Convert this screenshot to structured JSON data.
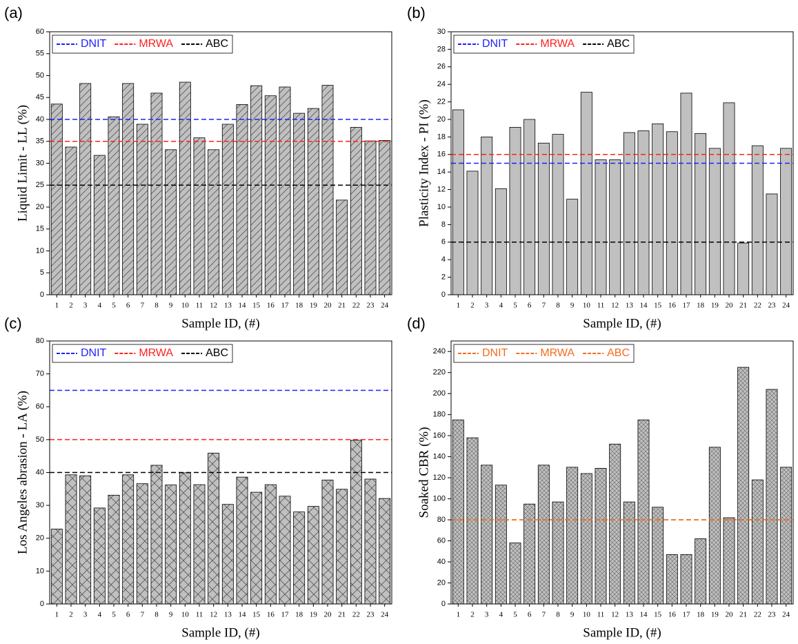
{
  "chart_data": [
    {
      "type": "bar",
      "panel_label": "(a)",
      "y_label": "Liquid Limit - LL (%)",
      "x_label": "Sample ID, (#)",
      "categories": [
        "1",
        "2",
        "3",
        "4",
        "5",
        "6",
        "7",
        "8",
        "9",
        "10",
        "11",
        "12",
        "13",
        "14",
        "15",
        "16",
        "17",
        "18",
        "19",
        "20",
        "21",
        "22",
        "23",
        "24"
      ],
      "values": [
        43.5,
        33.7,
        48.2,
        31.8,
        40.6,
        48.2,
        38.9,
        46.0,
        33.1,
        48.5,
        35.8,
        33.1,
        38.9,
        43.4,
        47.7,
        45.4,
        47.4,
        41.4,
        42.5,
        47.8,
        21.6,
        38.2,
        35.1,
        35.2
      ],
      "color": "#c0c0c0",
      "pattern": "diagonal",
      "ylim": [
        0,
        60
      ],
      "yticks": [
        0,
        5,
        10,
        15,
        20,
        25,
        30,
        35,
        40,
        45,
        50,
        55,
        60
      ],
      "reference_lines": [
        {
          "name": "DNIT",
          "color": "#1f1fff",
          "value": 40
        },
        {
          "name": "MRWA",
          "color": "#ff1f1f",
          "value": 35
        },
        {
          "name": "ABC",
          "color": "#000000",
          "value": 25
        }
      ]
    },
    {
      "type": "bar",
      "panel_label": "(b)",
      "y_label": "Plasticity Index - PI (%)",
      "x_label": "Sample ID, (#)",
      "categories": [
        "1",
        "2",
        "3",
        "4",
        "5",
        "6",
        "7",
        "8",
        "9",
        "10",
        "11",
        "12",
        "13",
        "14",
        "15",
        "16",
        "17",
        "18",
        "19",
        "20",
        "21",
        "22",
        "23",
        "24"
      ],
      "values": [
        21.1,
        14.1,
        18.0,
        12.1,
        19.1,
        20.0,
        17.3,
        18.3,
        10.9,
        23.1,
        15.4,
        15.4,
        18.5,
        18.7,
        19.5,
        18.6,
        23.0,
        18.4,
        16.7,
        21.9,
        5.9,
        17.0,
        11.5,
        16.7
      ],
      "color": "#c0c0c0",
      "pattern": "none",
      "ylim": [
        0,
        30
      ],
      "yticks": [
        0,
        2,
        4,
        6,
        8,
        10,
        12,
        14,
        16,
        18,
        20,
        22,
        24,
        26,
        28,
        30
      ],
      "reference_lines": [
        {
          "name": "DNIT",
          "color": "#1f1fff",
          "value": 15
        },
        {
          "name": "MRWA",
          "color": "#ff1f1f",
          "value": 16
        },
        {
          "name": "ABC",
          "color": "#000000",
          "value": 6
        }
      ]
    },
    {
      "type": "bar",
      "panel_label": "(c)",
      "y_label": "Los Angeles abrasion - LA (%)",
      "x_label": "Sample ID, (#)",
      "categories": [
        "1",
        "2",
        "3",
        "4",
        "5",
        "6",
        "7",
        "8",
        "9",
        "10",
        "11",
        "12",
        "13",
        "14",
        "15",
        "16",
        "17",
        "18",
        "19",
        "20",
        "21",
        "22",
        "23",
        "24"
      ],
      "values": [
        22.8,
        39.3,
        39.0,
        29.2,
        33.1,
        39.3,
        36.6,
        42.2,
        36.2,
        39.9,
        36.3,
        45.9,
        30.3,
        38.6,
        34.0,
        36.3,
        32.8,
        28.0,
        29.7,
        37.7,
        34.9,
        49.8,
        38.0,
        32.1
      ],
      "color": "#c0c0c0",
      "pattern": "cross",
      "ylim": [
        0,
        80
      ],
      "yticks": [
        0,
        10,
        20,
        30,
        40,
        50,
        60,
        70,
        80
      ],
      "reference_lines": [
        {
          "name": "DNIT",
          "color": "#1f1fff",
          "value": 65
        },
        {
          "name": "MRWA",
          "color": "#ff1f1f",
          "value": 50
        },
        {
          "name": "ABC",
          "color": "#000000",
          "value": 40
        }
      ]
    },
    {
      "type": "bar",
      "panel_label": "(d)",
      "y_label": "Soaked CBR (%)",
      "x_label": "Sample ID, (#)",
      "categories": [
        "1",
        "2",
        "3",
        "4",
        "5",
        "6",
        "7",
        "8",
        "9",
        "10",
        "11",
        "12",
        "13",
        "14",
        "15",
        "16",
        "17",
        "18",
        "19",
        "20",
        "21",
        "22",
        "23",
        "24"
      ],
      "values": [
        175,
        158,
        132,
        113,
        58,
        95,
        132,
        97,
        130,
        124,
        129,
        152,
        97,
        175,
        92,
        47,
        47,
        62,
        149,
        82,
        225,
        118,
        204,
        130
      ],
      "color": "#c0c0c0",
      "pattern": "fine-cross",
      "ylim": [
        0,
        250
      ],
      "yticks": [
        0,
        20,
        40,
        60,
        80,
        100,
        120,
        140,
        160,
        180,
        200,
        220,
        240
      ],
      "reference_lines": [
        {
          "name": "DNIT",
          "color": "#f26b1d",
          "value": 80
        },
        {
          "name": "MRWA",
          "color": "#f26b1d",
          "value": 80
        },
        {
          "name": "ABC",
          "color": "#f26b1d",
          "value": 80
        }
      ]
    }
  ]
}
